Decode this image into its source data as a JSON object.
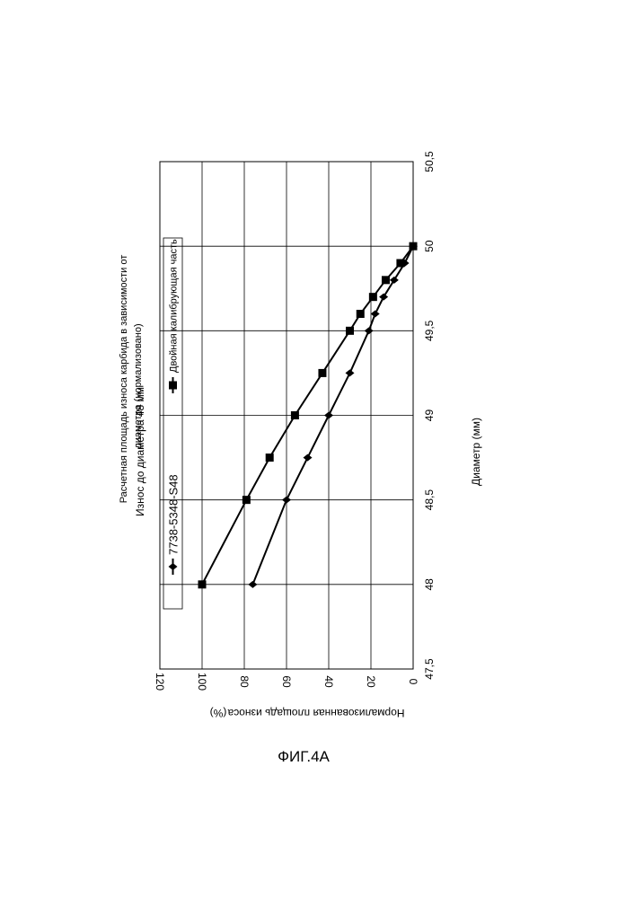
{
  "figure_caption": "ФИГ.4А",
  "chart_data": {
    "type": "line",
    "title_line1": "Расчетная площадь износа карбида в зависимости от",
    "title_line2": "диаметра (нормализовано)",
    "subtitle": "Износ до диаметра 48 мм",
    "xlabel": "Диаметр (мм)",
    "ylabel": "Нормализованная площадь износа",
    "ylabel_unit": "(%)",
    "xlim": [
      47.5,
      50.5
    ],
    "ylim": [
      0,
      120
    ],
    "x_ticks": [
      "47,5",
      "48",
      "48,5",
      "49",
      "49,5",
      "50",
      "50,5"
    ],
    "y_ticks": [
      "0",
      "20",
      "40",
      "60",
      "80",
      "100",
      "120"
    ],
    "grid": true,
    "legend_position": "top",
    "series": [
      {
        "name": "7738-5348-S48",
        "marker": "diamond",
        "x": [
          48,
          48.5,
          48.75,
          49,
          49.25,
          49.5,
          49.6,
          49.7,
          49.8,
          49.9,
          50
        ],
        "y": [
          76,
          60,
          50,
          40,
          30,
          21,
          18,
          14,
          9,
          4,
          0
        ]
      },
      {
        "name": "Двойная калибрующая часть",
        "marker": "square",
        "x": [
          48,
          48.5,
          48.75,
          49,
          49.25,
          49.5,
          49.6,
          49.7,
          49.8,
          49.9,
          50
        ],
        "y": [
          100,
          79,
          68,
          56,
          43,
          30,
          25,
          19,
          13,
          6,
          0
        ]
      }
    ]
  }
}
